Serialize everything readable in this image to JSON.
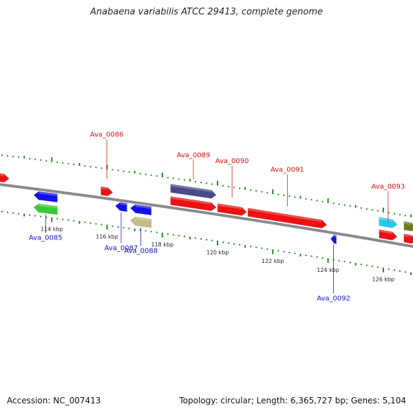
{
  "title": "Anabaena variabilis ATCC 29413, complete genome",
  "footer": {
    "accession": "Accession: NC_007413",
    "summary": "Topology: circular; Length: 6,365,727 bp; Genes: 5,104"
  },
  "colors": {
    "forward_label": "#dd1111",
    "reverse_label": "#1111cc",
    "tick": "#1e8a1e",
    "backbone": "#8a8a8a"
  },
  "ruler": {
    "start_kbp": 112.0,
    "end_kbp": 127.2,
    "major_labels": [
      "114 kbp",
      "116 kbp",
      "118 kbp",
      "120 kbp",
      "122 kbp",
      "124 kbp",
      "126 kbp"
    ]
  },
  "features": [
    {
      "strand": "+",
      "lane": 1,
      "start": 112.0,
      "end": 112.45,
      "color": "#ee1111"
    },
    {
      "strand": "+",
      "lane": 1,
      "start": 115.78,
      "end": 116.2,
      "color": "#ee1111",
      "label": "Ava_0086"
    },
    {
      "strand": "+",
      "lane": 2,
      "start": 118.3,
      "end": 119.95,
      "color": "#4a4a8a",
      "label": "Ava_0089"
    },
    {
      "strand": "+",
      "lane": 1,
      "start": 118.3,
      "end": 119.95,
      "color": "#ee1111"
    },
    {
      "strand": "+",
      "lane": 1,
      "start": 120.0,
      "end": 121.05,
      "color": "#ee1111",
      "label": "Ava_0090"
    },
    {
      "strand": "+",
      "lane": 1,
      "start": 121.1,
      "end": 123.95,
      "color": "#ee1111",
      "label": "Ava_0091"
    },
    {
      "strand": "+",
      "lane": 2,
      "start": 125.85,
      "end": 126.5,
      "color": "#22ccee"
    },
    {
      "strand": "+",
      "lane": 1,
      "start": 125.85,
      "end": 126.5,
      "color": "#ee1111",
      "label": "Ava_0093"
    },
    {
      "strand": "+",
      "lane": 2,
      "start": 126.75,
      "end": 127.2,
      "color": "#6b7d1e"
    },
    {
      "strand": "+",
      "lane": 1,
      "start": 126.75,
      "end": 127.2,
      "color": "#ee1111"
    },
    {
      "strand": "-",
      "lane": 1,
      "start": 113.35,
      "end": 114.2,
      "color": "#1111ee"
    },
    {
      "strand": "-",
      "lane": 2,
      "start": 113.35,
      "end": 114.2,
      "color": "#33cc33",
      "label": "Ava_0085"
    },
    {
      "strand": "-",
      "lane": 1,
      "start": 116.3,
      "end": 116.72,
      "color": "#1111ee",
      "label": "Ava_0087"
    },
    {
      "strand": "-",
      "lane": 1,
      "start": 116.85,
      "end": 117.6,
      "color": "#1111ee"
    },
    {
      "strand": "-",
      "lane": 2,
      "start": 116.85,
      "end": 117.6,
      "color": "#c2bd80",
      "label": "Ava_0088"
    },
    {
      "strand": "-",
      "lane": 1,
      "start": 124.1,
      "end": 124.3,
      "color": "#1111ee",
      "label": "Ava_0092"
    }
  ]
}
